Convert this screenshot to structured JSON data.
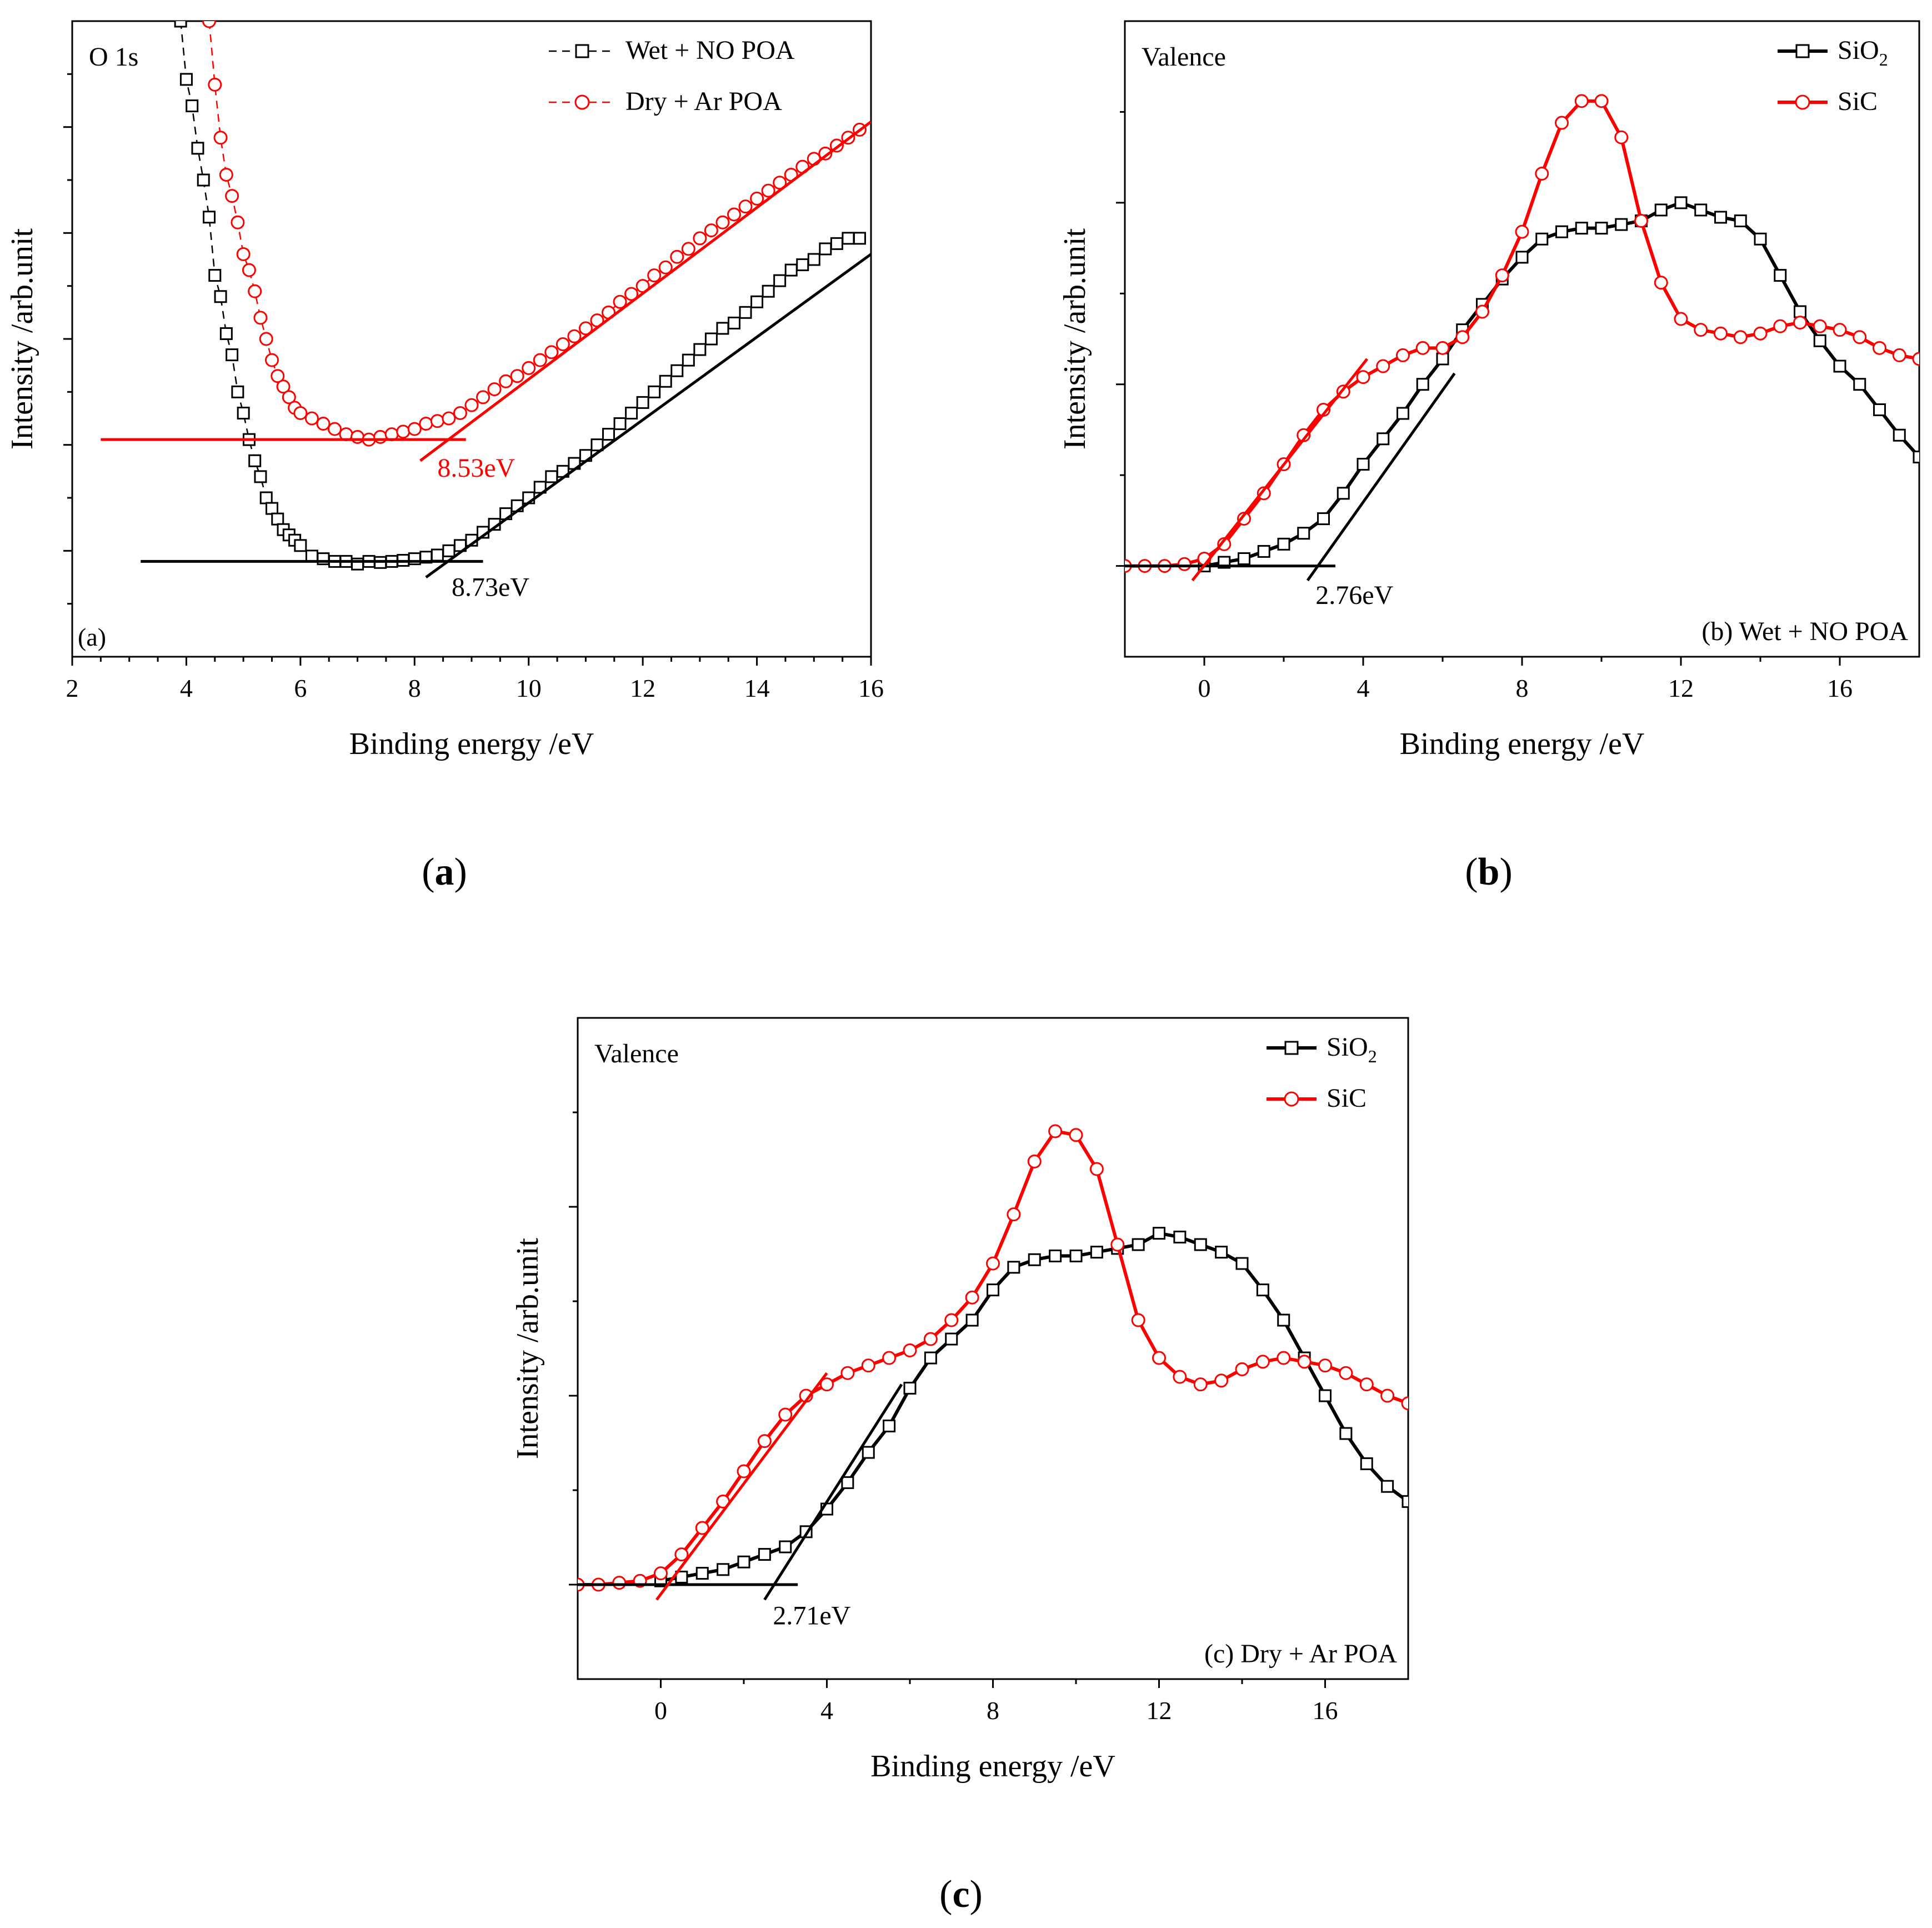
{
  "colors": {
    "black": "#000000",
    "red": "#ff0000"
  },
  "captions": {
    "a": {
      "open": "(",
      "letter": "a",
      "close": ")"
    },
    "b": {
      "open": "(",
      "letter": "b",
      "close": ")"
    },
    "c": {
      "open": "(",
      "letter": "c",
      "close": ")"
    }
  },
  "chart_data": [
    {
      "id": "a",
      "type": "scatter",
      "title": "",
      "corner_label": "O 1s",
      "panel_tag": "(a)",
      "xlabel": "Binding energy /eV",
      "ylabel": "Intensity /arb.unit",
      "xlim": [
        2,
        16
      ],
      "ylim": [
        0,
        12
      ],
      "xticks": [
        2,
        4,
        6,
        8,
        10,
        12,
        14,
        16
      ],
      "yticks_labeled": false,
      "legend_position": "top-right",
      "legend": [
        {
          "label": "Wet + NO POA",
          "color": "#000000",
          "marker": "square",
          "line": "dashed"
        },
        {
          "label": "Dry + Ar POA",
          "color": "#ff0000",
          "marker": "circle",
          "line": "dashed"
        }
      ],
      "series": [
        {
          "name": "Wet + NO POA",
          "color": "#000000",
          "marker": "square",
          "line": "dashed",
          "x": [
            3.9,
            4.0,
            4.1,
            4.2,
            4.3,
            4.4,
            4.5,
            4.6,
            4.7,
            4.8,
            4.9,
            5.0,
            5.1,
            5.2,
            5.3,
            5.4,
            5.5,
            5.6,
            5.7,
            5.8,
            5.9,
            6.0,
            6.2,
            6.4,
            6.6,
            6.8,
            7.0,
            7.2,
            7.4,
            7.6,
            7.8,
            8.0,
            8.2,
            8.4,
            8.6,
            8.8,
            9.0,
            9.2,
            9.4,
            9.6,
            9.8,
            10.0,
            10.2,
            10.4,
            10.6,
            10.8,
            11.0,
            11.2,
            11.4,
            11.6,
            11.8,
            12.0,
            12.2,
            12.4,
            12.6,
            12.8,
            13.0,
            13.2,
            13.4,
            13.6,
            13.8,
            14.0,
            14.2,
            14.4,
            14.6,
            14.8,
            15.0,
            15.2,
            15.4,
            15.6,
            15.8
          ],
          "y": [
            12.0,
            10.9,
            10.4,
            9.6,
            9.0,
            8.3,
            7.2,
            6.8,
            6.1,
            5.7,
            5.0,
            4.6,
            4.1,
            3.7,
            3.4,
            3.0,
            2.8,
            2.6,
            2.4,
            2.3,
            2.2,
            2.1,
            1.9,
            1.85,
            1.8,
            1.8,
            1.75,
            1.8,
            1.78,
            1.8,
            1.82,
            1.85,
            1.88,
            1.92,
            2.0,
            2.1,
            2.2,
            2.35,
            2.5,
            2.7,
            2.85,
            3.0,
            3.2,
            3.4,
            3.5,
            3.65,
            3.8,
            4.0,
            4.2,
            4.4,
            4.6,
            4.8,
            5.0,
            5.2,
            5.4,
            5.6,
            5.8,
            6.0,
            6.2,
            6.3,
            6.5,
            6.7,
            6.9,
            7.1,
            7.3,
            7.4,
            7.5,
            7.7,
            7.8,
            7.9,
            7.9
          ]
        },
        {
          "name": "Dry + Ar POA",
          "color": "#ff0000",
          "marker": "circle",
          "line": "dashed",
          "x": [
            4.4,
            4.5,
            4.6,
            4.7,
            4.8,
            4.9,
            5.0,
            5.1,
            5.2,
            5.3,
            5.4,
            5.5,
            5.6,
            5.7,
            5.8,
            5.9,
            6.0,
            6.2,
            6.4,
            6.6,
            6.8,
            7.0,
            7.2,
            7.4,
            7.6,
            7.8,
            8.0,
            8.2,
            8.4,
            8.6,
            8.8,
            9.0,
            9.2,
            9.4,
            9.6,
            9.8,
            10.0,
            10.2,
            10.4,
            10.6,
            10.8,
            11.0,
            11.2,
            11.4,
            11.6,
            11.8,
            12.0,
            12.2,
            12.4,
            12.6,
            12.8,
            13.0,
            13.2,
            13.4,
            13.6,
            13.8,
            14.0,
            14.2,
            14.4,
            14.6,
            14.8,
            15.0,
            15.2,
            15.4,
            15.6,
            15.8
          ],
          "y": [
            12.0,
            10.8,
            9.8,
            9.1,
            8.7,
            8.2,
            7.6,
            7.3,
            6.9,
            6.4,
            6.0,
            5.6,
            5.3,
            5.1,
            4.9,
            4.7,
            4.6,
            4.5,
            4.4,
            4.3,
            4.2,
            4.15,
            4.1,
            4.15,
            4.2,
            4.25,
            4.3,
            4.4,
            4.45,
            4.5,
            4.6,
            4.75,
            4.9,
            5.05,
            5.2,
            5.3,
            5.45,
            5.6,
            5.75,
            5.9,
            6.05,
            6.2,
            6.35,
            6.5,
            6.7,
            6.85,
            7.0,
            7.2,
            7.35,
            7.55,
            7.7,
            7.9,
            8.05,
            8.2,
            8.35,
            8.5,
            8.65,
            8.8,
            8.95,
            9.1,
            9.25,
            9.4,
            9.5,
            9.65,
            9.8,
            9.95
          ]
        }
      ],
      "fit_lines": [
        {
          "color": "#ff0000",
          "x": [
            2.5,
            8.9
          ],
          "y": [
            4.1,
            4.1
          ]
        },
        {
          "color": "#ff0000",
          "x": [
            8.1,
            16.0
          ],
          "y": [
            3.7,
            10.1
          ]
        },
        {
          "color": "#000000",
          "x": [
            3.2,
            9.2
          ],
          "y": [
            1.8,
            1.8
          ]
        },
        {
          "color": "#000000",
          "x": [
            8.2,
            16.0
          ],
          "y": [
            1.5,
            7.6
          ]
        }
      ],
      "annotations": [
        {
          "text": "8.53eV",
          "color": "#ff0000",
          "x": 8.4,
          "y": 3.4
        },
        {
          "text": "8.73eV",
          "color": "#000000",
          "x": 8.65,
          "y": 1.15
        }
      ]
    },
    {
      "id": "b",
      "type": "line",
      "title": "",
      "corner_label": "Valence",
      "panel_tag": "(b) Wet + NO POA",
      "xlabel": "Binding energy /eV",
      "ylabel": "Intensity /arb.unit",
      "xlim": [
        -2,
        18
      ],
      "ylim": [
        -0.25,
        1.5
      ],
      "xticks": [
        0,
        4,
        8,
        12,
        16
      ],
      "yticks_labeled": false,
      "legend_position": "top-right",
      "legend": [
        {
          "label": "SiO",
          "sub": "2",
          "color": "#000000",
          "marker": "square",
          "line": "solid"
        },
        {
          "label": "SiC",
          "sub": "",
          "color": "#ff0000",
          "marker": "circle",
          "line": "solid"
        }
      ],
      "series": [
        {
          "name": "SiO2",
          "color": "#000000",
          "marker": "square",
          "line": "solid",
          "x": [
            0.0,
            0.5,
            1.0,
            1.5,
            2.0,
            2.5,
            3.0,
            3.5,
            4.0,
            4.5,
            5.0,
            5.5,
            6.0,
            6.5,
            7.0,
            7.5,
            8.0,
            8.5,
            9.0,
            9.5,
            10.0,
            10.5,
            11.0,
            11.5,
            12.0,
            12.5,
            13.0,
            13.5,
            14.0,
            14.5,
            15.0,
            15.5,
            16.0,
            16.5,
            17.0,
            17.5,
            18.0
          ],
          "y": [
            0.0,
            0.01,
            0.02,
            0.04,
            0.06,
            0.09,
            0.13,
            0.2,
            0.28,
            0.35,
            0.42,
            0.5,
            0.57,
            0.65,
            0.72,
            0.79,
            0.85,
            0.9,
            0.92,
            0.93,
            0.93,
            0.94,
            0.95,
            0.98,
            1.0,
            0.98,
            0.96,
            0.95,
            0.9,
            0.8,
            0.7,
            0.62,
            0.55,
            0.5,
            0.43,
            0.36,
            0.3
          ]
        },
        {
          "name": "SiC",
          "color": "#ff0000",
          "marker": "circle",
          "line": "solid",
          "x": [
            -2.0,
            -1.5,
            -1.0,
            -0.5,
            0.0,
            0.5,
            1.0,
            1.5,
            2.0,
            2.5,
            3.0,
            3.5,
            4.0,
            4.5,
            5.0,
            5.5,
            6.0,
            6.5,
            7.0,
            7.5,
            8.0,
            8.5,
            9.0,
            9.5,
            10.0,
            10.5,
            11.0,
            11.5,
            12.0,
            12.5,
            13.0,
            13.5,
            14.0,
            14.5,
            15.0,
            15.5,
            16.0,
            16.5,
            17.0,
            17.5,
            18.0
          ],
          "y": [
            0.0,
            0.0,
            0.0,
            0.005,
            0.02,
            0.06,
            0.13,
            0.2,
            0.28,
            0.36,
            0.43,
            0.48,
            0.52,
            0.55,
            0.58,
            0.6,
            0.6,
            0.63,
            0.7,
            0.8,
            0.92,
            1.08,
            1.22,
            1.28,
            1.28,
            1.18,
            0.95,
            0.78,
            0.68,
            0.65,
            0.64,
            0.63,
            0.64,
            0.66,
            0.67,
            0.66,
            0.65,
            0.63,
            0.6,
            0.58,
            0.57
          ]
        }
      ],
      "fit_lines": [
        {
          "color": "#000000",
          "x": [
            -2.0,
            3.3
          ],
          "y": [
            0.0,
            0.0
          ]
        },
        {
          "color": "#000000",
          "x": [
            2.6,
            6.3
          ],
          "y": [
            -0.04,
            0.53
          ]
        },
        {
          "color": "#ff0000",
          "x": [
            -0.3,
            4.1
          ],
          "y": [
            -0.04,
            0.57
          ]
        }
      ],
      "annotations": [
        {
          "text": "2.76eV",
          "color": "#000000",
          "x": 2.8,
          "y": -0.105
        }
      ]
    },
    {
      "id": "c",
      "type": "line",
      "title": "",
      "corner_label": "Valence",
      "panel_tag": "(c) Dry + Ar POA",
      "xlabel": "Binding energy /eV",
      "ylabel": "Intensity /arb.unit",
      "xlim": [
        -2,
        18
      ],
      "ylim": [
        -0.25,
        1.5
      ],
      "xticks": [
        0,
        4,
        8,
        12,
        16
      ],
      "yticks_labeled": false,
      "legend_position": "top-right",
      "legend": [
        {
          "label": "SiO",
          "sub": "2",
          "color": "#000000",
          "marker": "square",
          "line": "solid"
        },
        {
          "label": "SiC",
          "sub": "",
          "color": "#ff0000",
          "marker": "circle",
          "line": "solid"
        }
      ],
      "series": [
        {
          "name": "SiO2",
          "color": "#000000",
          "marker": "square",
          "line": "solid",
          "x": [
            0.0,
            0.5,
            1.0,
            1.5,
            2.0,
            2.5,
            3.0,
            3.5,
            4.0,
            4.5,
            5.0,
            5.5,
            6.0,
            6.5,
            7.0,
            7.5,
            8.0,
            8.5,
            9.0,
            9.5,
            10.0,
            10.5,
            11.0,
            11.5,
            12.0,
            12.5,
            13.0,
            13.5,
            14.0,
            14.5,
            15.0,
            15.5,
            16.0,
            16.5,
            17.0,
            17.5,
            18.0
          ],
          "y": [
            0.01,
            0.02,
            0.03,
            0.04,
            0.06,
            0.08,
            0.1,
            0.14,
            0.2,
            0.27,
            0.35,
            0.42,
            0.52,
            0.6,
            0.65,
            0.7,
            0.78,
            0.84,
            0.86,
            0.87,
            0.87,
            0.88,
            0.89,
            0.9,
            0.93,
            0.92,
            0.9,
            0.88,
            0.85,
            0.78,
            0.7,
            0.6,
            0.5,
            0.4,
            0.32,
            0.26,
            0.22
          ]
        },
        {
          "name": "SiC",
          "color": "#ff0000",
          "marker": "circle",
          "line": "solid",
          "x": [
            -2.0,
            -1.5,
            -1.0,
            -0.5,
            0.0,
            0.5,
            1.0,
            1.5,
            2.0,
            2.5,
            3.0,
            3.5,
            4.0,
            4.5,
            5.0,
            5.5,
            6.0,
            6.5,
            7.0,
            7.5,
            8.0,
            8.5,
            9.0,
            9.5,
            10.0,
            10.5,
            11.0,
            11.5,
            12.0,
            12.5,
            13.0,
            13.5,
            14.0,
            14.5,
            15.0,
            15.5,
            16.0,
            16.5,
            17.0,
            17.5,
            18.0
          ],
          "y": [
            0.0,
            0.0,
            0.005,
            0.01,
            0.03,
            0.08,
            0.15,
            0.22,
            0.3,
            0.38,
            0.45,
            0.5,
            0.53,
            0.56,
            0.58,
            0.6,
            0.62,
            0.65,
            0.7,
            0.76,
            0.85,
            0.98,
            1.12,
            1.2,
            1.19,
            1.1,
            0.9,
            0.7,
            0.6,
            0.55,
            0.53,
            0.54,
            0.57,
            0.59,
            0.6,
            0.59,
            0.58,
            0.56,
            0.53,
            0.5,
            0.48
          ]
        }
      ],
      "fit_lines": [
        {
          "color": "#000000",
          "x": [
            -2.0,
            3.3
          ],
          "y": [
            0.0,
            0.0
          ]
        },
        {
          "color": "#000000",
          "x": [
            2.5,
            5.8
          ],
          "y": [
            -0.04,
            0.53
          ]
        },
        {
          "color": "#ff0000",
          "x": [
            -0.1,
            4.0
          ],
          "y": [
            -0.04,
            0.56
          ]
        }
      ],
      "annotations": [
        {
          "text": "2.71eV",
          "color": "#000000",
          "x": 2.7,
          "y": -0.105
        }
      ]
    }
  ]
}
